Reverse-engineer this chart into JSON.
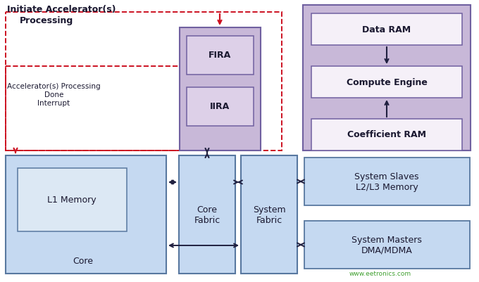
{
  "fig_w": 6.8,
  "fig_h": 4.02,
  "dpi": 100,
  "bg": "#ffffff",
  "col": {
    "blue_fill": "#c5d9f1",
    "blue_edge": "#5878a0",
    "purp_fill": "#c8b8d8",
    "purp_edge": "#7060a0",
    "inner_purp": "#ddd0e8",
    "inner_blue": "#dce8f4",
    "white_fill": "#f5f0f8",
    "arrow_dark": "#202040",
    "red_dash": "#cc1020",
    "green_wm": "#40a030",
    "text_main": "#1a1830"
  },
  "lbl": {
    "init": "Initiate Accelerator(s)",
    "proc": "Processing",
    "done": "Accelerator(s) Processing\nDone\nInterrupt",
    "fira": "FIRA",
    "iira": "IIRA",
    "dram": "Data RAM",
    "ceng": "Compute Engine",
    "coeff": "Coefficient RAM",
    "l1mem": "L1 Memory",
    "core": "Core",
    "cfab": "Core\nFabric",
    "sfab": "System\nFabric",
    "ssl": "System Slaves\nL2/L3 Memory",
    "sms": "System Masters\nDMA/MDMA",
    "wm": "www.eetronics.com"
  }
}
